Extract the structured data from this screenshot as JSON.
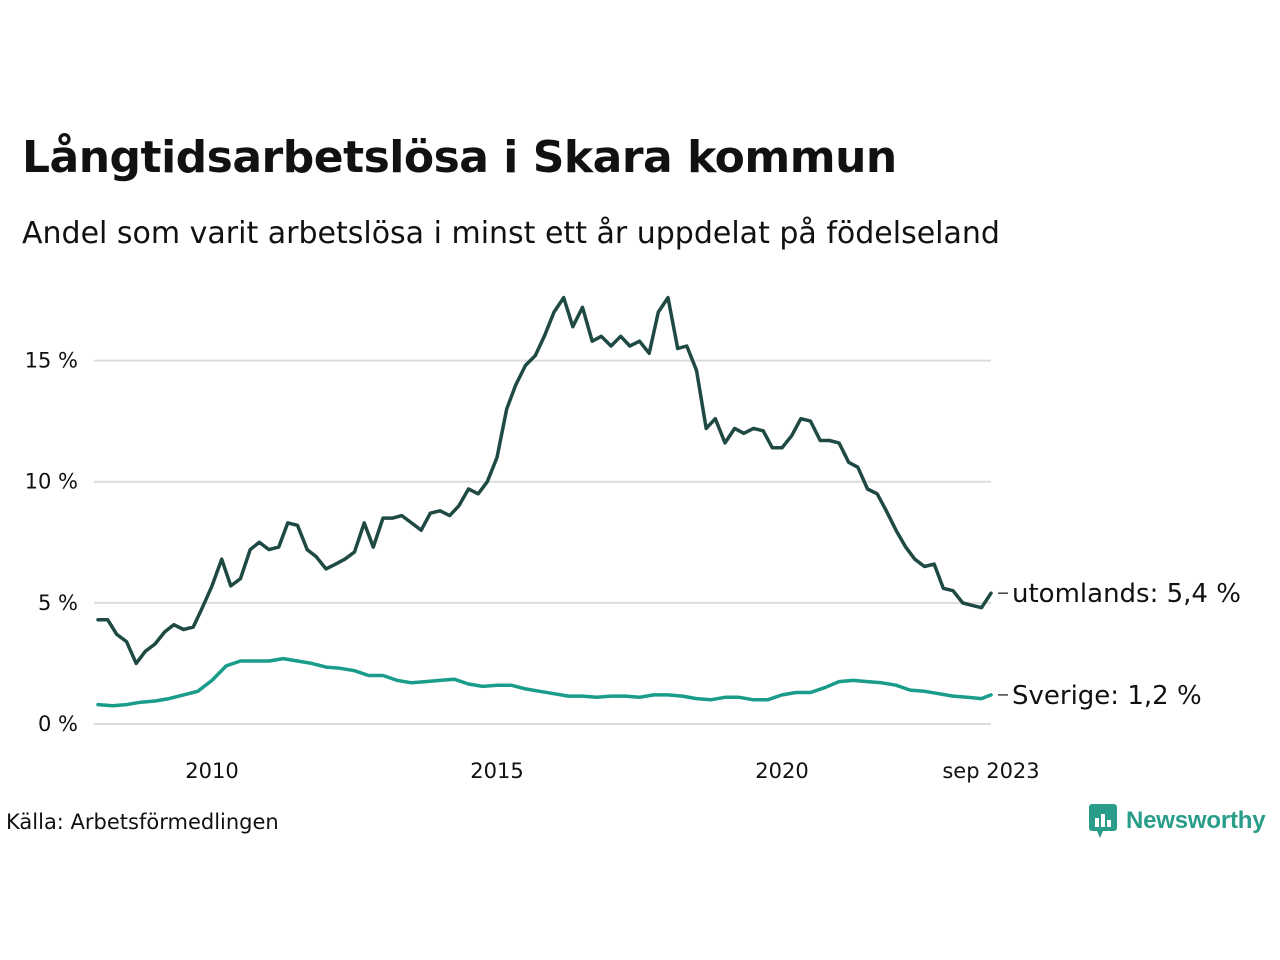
{
  "title": "Långtidsarbetslösa i Skara kommun",
  "subtitle": "Andel som varit arbetslösa i minst ett år uppdelat på födelseland",
  "source": "Källa: Arbetsförmedlingen",
  "brand": "Newsworthy",
  "colors": {
    "brand": "#2a9d8a",
    "utomlands": "#1f4a44",
    "sverige": "#1a9c8b",
    "grid": "#dcdcdc"
  },
  "chart_data": {
    "type": "line",
    "title": "Långtidsarbetslösa i Skara kommun",
    "subtitle": "Andel som varit arbetslösa i minst ett år uppdelat på födelseland",
    "xlabel": "",
    "ylabel": "",
    "x_range": [
      2008.0,
      2023.667
    ],
    "ylim": [
      0,
      17.5
    ],
    "x_ticks": [
      {
        "value": 2010,
        "label": "2010"
      },
      {
        "value": 2015,
        "label": "2015"
      },
      {
        "value": 2020,
        "label": "2020"
      },
      {
        "value": 2023.667,
        "label": "sep 2023"
      }
    ],
    "y_ticks": [
      {
        "value": 0,
        "label": "0 %"
      },
      {
        "value": 5,
        "label": "5 %"
      },
      {
        "value": 10,
        "label": "10 %"
      },
      {
        "value": 15,
        "label": "15 %"
      }
    ],
    "grid": true,
    "series": [
      {
        "name": "utomlands",
        "end_label": "utomlands: 5,4 %",
        "color": "#1f4a44",
        "points": [
          [
            2008.0,
            4.3
          ],
          [
            2008.17,
            4.3
          ],
          [
            2008.33,
            3.7
          ],
          [
            2008.5,
            3.4
          ],
          [
            2008.67,
            2.5
          ],
          [
            2008.83,
            3.0
          ],
          [
            2009.0,
            3.3
          ],
          [
            2009.17,
            3.8
          ],
          [
            2009.33,
            4.1
          ],
          [
            2009.5,
            3.9
          ],
          [
            2009.67,
            4.0
          ],
          [
            2009.83,
            4.8
          ],
          [
            2010.0,
            5.7
          ],
          [
            2010.17,
            6.8
          ],
          [
            2010.33,
            5.7
          ],
          [
            2010.5,
            6.0
          ],
          [
            2010.67,
            7.2
          ],
          [
            2010.83,
            7.5
          ],
          [
            2011.0,
            7.2
          ],
          [
            2011.17,
            7.3
          ],
          [
            2011.33,
            8.3
          ],
          [
            2011.5,
            8.2
          ],
          [
            2011.67,
            7.2
          ],
          [
            2011.83,
            6.9
          ],
          [
            2012.0,
            6.4
          ],
          [
            2012.17,
            6.6
          ],
          [
            2012.33,
            6.8
          ],
          [
            2012.5,
            7.1
          ],
          [
            2012.67,
            8.3
          ],
          [
            2012.83,
            7.3
          ],
          [
            2013.0,
            8.5
          ],
          [
            2013.17,
            8.5
          ],
          [
            2013.33,
            8.6
          ],
          [
            2013.5,
            8.3
          ],
          [
            2013.67,
            8.0
          ],
          [
            2013.83,
            8.7
          ],
          [
            2014.0,
            8.8
          ],
          [
            2014.17,
            8.6
          ],
          [
            2014.33,
            9.0
          ],
          [
            2014.5,
            9.7
          ],
          [
            2014.67,
            9.5
          ],
          [
            2014.83,
            10.0
          ],
          [
            2015.0,
            11.0
          ],
          [
            2015.17,
            13.0
          ],
          [
            2015.33,
            14.0
          ],
          [
            2015.5,
            14.8
          ],
          [
            2015.67,
            15.2
          ],
          [
            2015.83,
            16.0
          ],
          [
            2016.0,
            17.0
          ],
          [
            2016.17,
            17.6
          ],
          [
            2016.33,
            16.4
          ],
          [
            2016.5,
            17.2
          ],
          [
            2016.67,
            15.8
          ],
          [
            2016.83,
            16.0
          ],
          [
            2017.0,
            15.6
          ],
          [
            2017.17,
            16.0
          ],
          [
            2017.33,
            15.6
          ],
          [
            2017.5,
            15.8
          ],
          [
            2017.67,
            15.3
          ],
          [
            2017.83,
            17.0
          ],
          [
            2018.0,
            17.6
          ],
          [
            2018.17,
            15.5
          ],
          [
            2018.33,
            15.6
          ],
          [
            2018.5,
            14.6
          ],
          [
            2018.67,
            12.2
          ],
          [
            2018.83,
            12.6
          ],
          [
            2019.0,
            11.6
          ],
          [
            2019.17,
            12.2
          ],
          [
            2019.33,
            12.0
          ],
          [
            2019.5,
            12.2
          ],
          [
            2019.67,
            12.1
          ],
          [
            2019.83,
            11.4
          ],
          [
            2020.0,
            11.4
          ],
          [
            2020.17,
            11.9
          ],
          [
            2020.33,
            12.6
          ],
          [
            2020.5,
            12.5
          ],
          [
            2020.67,
            11.7
          ],
          [
            2020.83,
            11.7
          ],
          [
            2021.0,
            11.6
          ],
          [
            2021.17,
            10.8
          ],
          [
            2021.33,
            10.6
          ],
          [
            2021.5,
            9.7
          ],
          [
            2021.67,
            9.5
          ],
          [
            2021.83,
            8.8
          ],
          [
            2022.0,
            8.0
          ],
          [
            2022.17,
            7.3
          ],
          [
            2022.33,
            6.8
          ],
          [
            2022.5,
            6.5
          ],
          [
            2022.67,
            6.6
          ],
          [
            2022.83,
            5.6
          ],
          [
            2023.0,
            5.5
          ],
          [
            2023.17,
            5.0
          ],
          [
            2023.33,
            4.9
          ],
          [
            2023.5,
            4.8
          ],
          [
            2023.667,
            5.4
          ]
        ]
      },
      {
        "name": "Sverige",
        "end_label": "Sverige: 1,2 %",
        "color": "#1a9c8b",
        "points": [
          [
            2008.0,
            0.8
          ],
          [
            2008.25,
            0.75
          ],
          [
            2008.5,
            0.8
          ],
          [
            2008.75,
            0.9
          ],
          [
            2009.0,
            0.95
          ],
          [
            2009.25,
            1.05
          ],
          [
            2009.5,
            1.2
          ],
          [
            2009.75,
            1.35
          ],
          [
            2010.0,
            1.8
          ],
          [
            2010.25,
            2.4
          ],
          [
            2010.5,
            2.6
          ],
          [
            2010.75,
            2.6
          ],
          [
            2011.0,
            2.6
          ],
          [
            2011.25,
            2.7
          ],
          [
            2011.5,
            2.6
          ],
          [
            2011.75,
            2.5
          ],
          [
            2012.0,
            2.35
          ],
          [
            2012.25,
            2.3
          ],
          [
            2012.5,
            2.2
          ],
          [
            2012.75,
            2.0
          ],
          [
            2013.0,
            2.0
          ],
          [
            2013.25,
            1.8
          ],
          [
            2013.5,
            1.7
          ],
          [
            2013.75,
            1.75
          ],
          [
            2014.0,
            1.8
          ],
          [
            2014.25,
            1.85
          ],
          [
            2014.5,
            1.65
          ],
          [
            2014.75,
            1.55
          ],
          [
            2015.0,
            1.6
          ],
          [
            2015.25,
            1.6
          ],
          [
            2015.5,
            1.45
          ],
          [
            2015.75,
            1.35
          ],
          [
            2016.0,
            1.25
          ],
          [
            2016.25,
            1.15
          ],
          [
            2016.5,
            1.15
          ],
          [
            2016.75,
            1.1
          ],
          [
            2017.0,
            1.15
          ],
          [
            2017.25,
            1.15
          ],
          [
            2017.5,
            1.1
          ],
          [
            2017.75,
            1.2
          ],
          [
            2018.0,
            1.2
          ],
          [
            2018.25,
            1.15
          ],
          [
            2018.5,
            1.05
          ],
          [
            2018.75,
            1.0
          ],
          [
            2019.0,
            1.1
          ],
          [
            2019.25,
            1.1
          ],
          [
            2019.5,
            1.0
          ],
          [
            2019.75,
            1.0
          ],
          [
            2020.0,
            1.2
          ],
          [
            2020.25,
            1.3
          ],
          [
            2020.5,
            1.3
          ],
          [
            2020.75,
            1.5
          ],
          [
            2021.0,
            1.75
          ],
          [
            2021.25,
            1.8
          ],
          [
            2021.5,
            1.75
          ],
          [
            2021.75,
            1.7
          ],
          [
            2022.0,
            1.6
          ],
          [
            2022.25,
            1.4
          ],
          [
            2022.5,
            1.35
          ],
          [
            2022.75,
            1.25
          ],
          [
            2023.0,
            1.15
          ],
          [
            2023.25,
            1.1
          ],
          [
            2023.5,
            1.05
          ],
          [
            2023.667,
            1.2
          ]
        ]
      }
    ]
  }
}
